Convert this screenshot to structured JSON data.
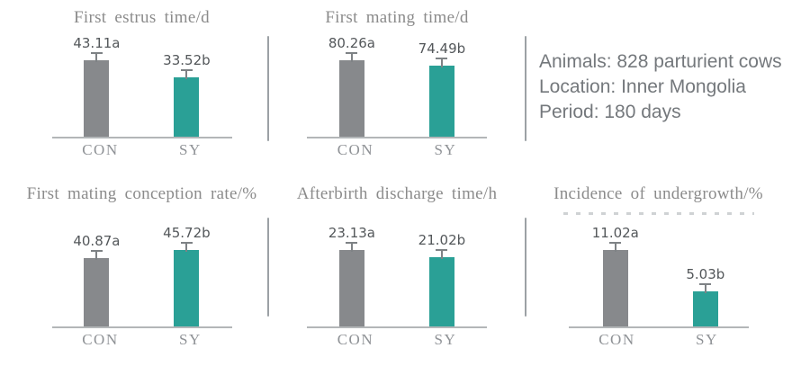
{
  "info_panel": {
    "line1": "Animals: 828 parturient cows",
    "line2": "Location: Inner Mongolia",
    "line3": "Period: 180 days"
  },
  "colors": {
    "bar_con": "#87898c",
    "bar_sy": "#2aa096",
    "error_bar": "#7e8285",
    "axis_line": "#b3b6b8",
    "divider": "#9ca1a5",
    "title_text": "#8b8b8b",
    "value_text": "#53575a",
    "info_text": "#74787c"
  },
  "chart_data": [
    {
      "type": "bar",
      "title": "First estrus time/d",
      "categories": [
        "CON",
        "SY"
      ],
      "values": [
        43.11,
        33.52
      ],
      "bar_labels": [
        "43.11a",
        "33.52b"
      ],
      "bar_colors": [
        "#87898c",
        "#2aa096"
      ],
      "error_bars": true,
      "legend": "none",
      "grid": false
    },
    {
      "type": "bar",
      "title": "First mating time/d",
      "categories": [
        "CON",
        "SY"
      ],
      "values": [
        80.26,
        74.49
      ],
      "bar_labels": [
        "80.26a",
        "74.49b"
      ],
      "bar_colors": [
        "#87898c",
        "#2aa096"
      ],
      "error_bars": true,
      "legend": "none",
      "grid": false
    },
    {
      "type": "bar",
      "title": "First mating conception rate/%",
      "categories": [
        "CON",
        "SY"
      ],
      "values": [
        40.87,
        45.72
      ],
      "bar_labels": [
        "40.87a",
        "45.72b"
      ],
      "bar_colors": [
        "#87898c",
        "#2aa096"
      ],
      "error_bars": true,
      "legend": "none",
      "grid": false
    },
    {
      "type": "bar",
      "title": "Afterbirth discharge time/h",
      "categories": [
        "CON",
        "SY"
      ],
      "values": [
        23.13,
        21.02
      ],
      "bar_labels": [
        "23.13a",
        "21.02b"
      ],
      "bar_colors": [
        "#87898c",
        "#2aa096"
      ],
      "error_bars": true,
      "legend": "none",
      "grid": false
    },
    {
      "type": "bar",
      "title": "Incidence of undergrowth/%",
      "categories": [
        "CON",
        "SY"
      ],
      "values": [
        11.02,
        5.03
      ],
      "bar_labels": [
        "11.02a",
        "5.03b"
      ],
      "bar_colors": [
        "#87898c",
        "#2aa096"
      ],
      "error_bars": true,
      "legend": "none",
      "grid": false
    }
  ]
}
